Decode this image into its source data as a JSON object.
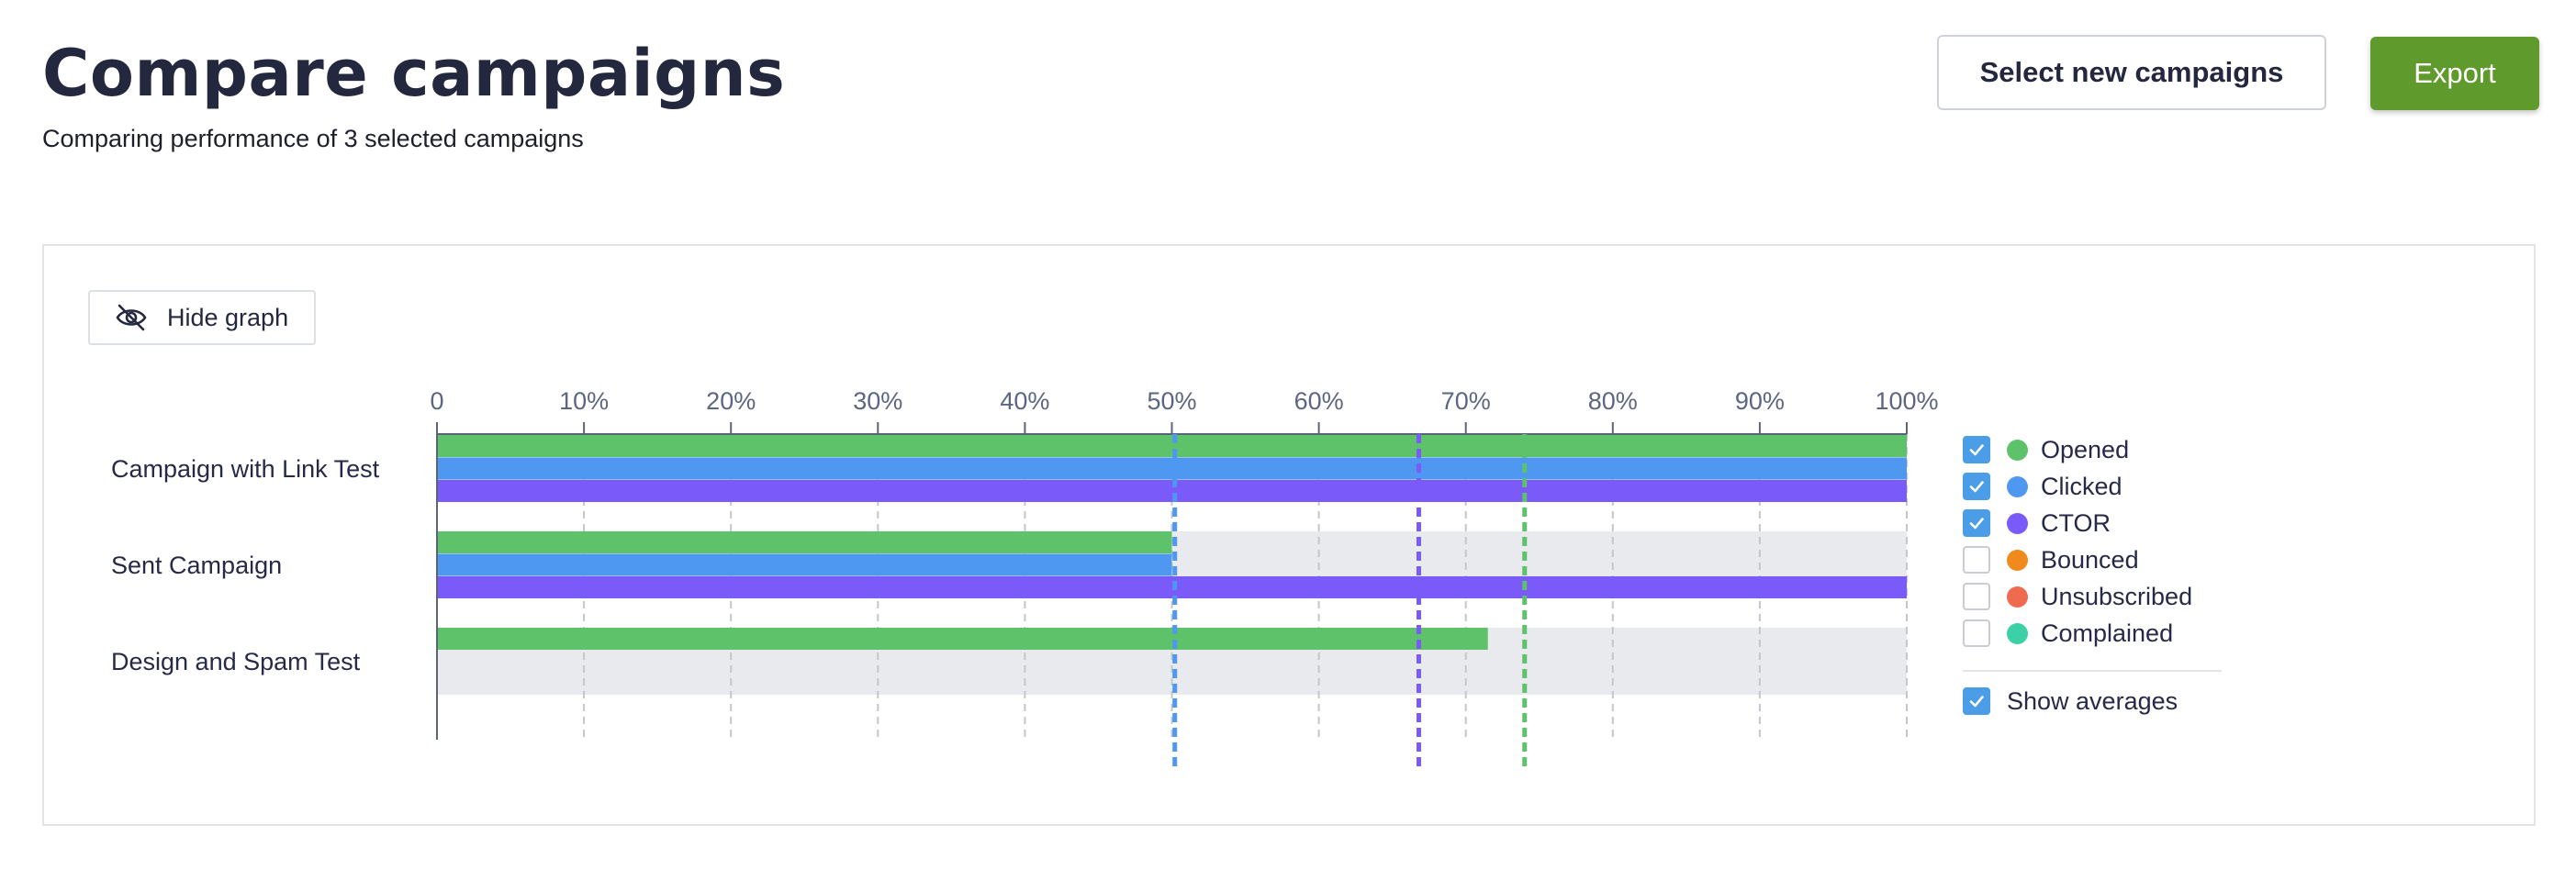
{
  "header": {
    "title": "Compare campaigns",
    "subtitle": "Comparing performance of 3 selected campaigns",
    "select_button": "Select new campaigns",
    "export_button": "Export"
  },
  "graph_panel": {
    "hide_button": {
      "label": "Hide graph",
      "icon": "eye-off-icon"
    }
  },
  "legend": {
    "items": [
      {
        "label": "Opened",
        "color": "#5ec26a",
        "checked": true
      },
      {
        "label": "Clicked",
        "color": "#4f98f2",
        "checked": true
      },
      {
        "label": "CTOR",
        "color": "#7a5af8",
        "checked": true
      },
      {
        "label": "Bounced",
        "color": "#f08a1c",
        "checked": false
      },
      {
        "label": "Unsubscribed",
        "color": "#ef6a4f",
        "checked": false
      },
      {
        "label": "Complained",
        "color": "#3bd0a6",
        "checked": false
      }
    ],
    "show_averages": {
      "label": "Show averages",
      "checked": true
    }
  },
  "chart_data": {
    "type": "bar",
    "orientation": "horizontal",
    "categories": [
      "Campaign with Link Test",
      "Sent Campaign",
      "Design and Spam Test"
    ],
    "series": [
      {
        "name": "Opened",
        "color": "#5ec26a",
        "values": [
          100,
          50,
          71.5
        ]
      },
      {
        "name": "Clicked",
        "color": "#4f98f2",
        "values": [
          100,
          50,
          0
        ]
      },
      {
        "name": "CTOR",
        "color": "#7a5af8",
        "values": [
          100,
          100,
          0
        ]
      }
    ],
    "averages": [
      {
        "series": "Opened",
        "value": 74
      },
      {
        "series": "Clicked",
        "value": 50.2
      },
      {
        "series": "CTOR",
        "value": 66.8
      }
    ],
    "x_ticks": [
      "0",
      "10%",
      "20%",
      "30%",
      "40%",
      "50%",
      "60%",
      "70%",
      "80%",
      "90%",
      "100%"
    ],
    "xlim": [
      0,
      100
    ],
    "grid": true,
    "legend_position": "right"
  }
}
